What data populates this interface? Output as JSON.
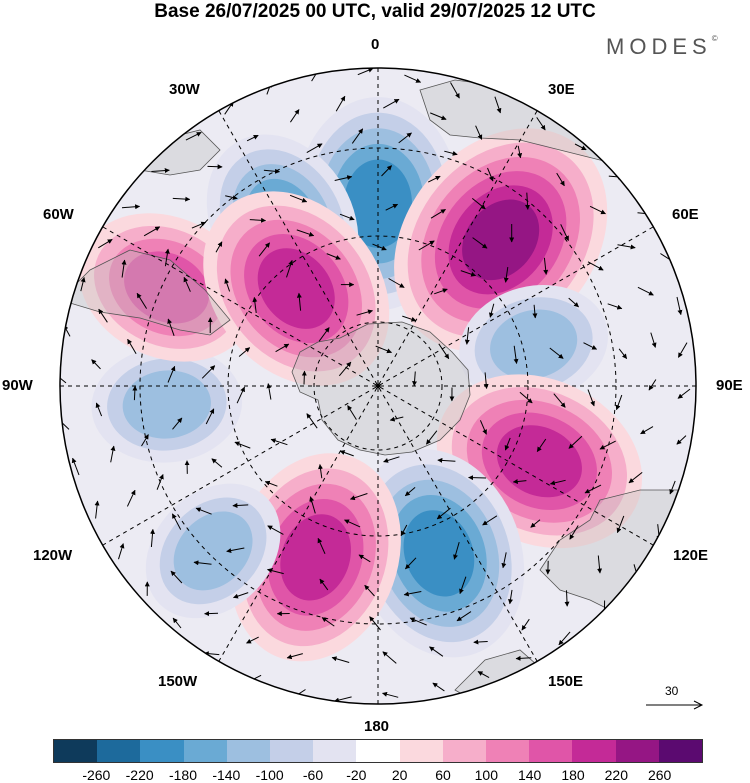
{
  "title": "Base 26/07/2025 00 UTC, valid 29/07/2025 12 UTC",
  "brand": "MODES",
  "brand_mark": "©",
  "longitude_labels": {
    "top": "0",
    "l30e": "30E",
    "l60e": "60E",
    "l90e": "90E",
    "l120e": "120E",
    "l150e": "150E",
    "bottom": "180",
    "l150w": "150W",
    "l120w": "120W",
    "l90w": "90W",
    "l60w": "60W",
    "l30w": "30W"
  },
  "colorbar": {
    "colors": [
      "#0e3a5b",
      "#1d6a9c",
      "#3a8fc4",
      "#6aaad4",
      "#9dbfe0",
      "#c4cfe8",
      "#e3e3f1",
      "#ffffff",
      "#fbd9de",
      "#f6aeca",
      "#ef81b6",
      "#e055a8",
      "#c42a97",
      "#951684",
      "#5b0a70"
    ],
    "ticks": [
      "-260",
      "-220",
      "-180",
      "-140",
      "-100",
      "-60",
      "-20",
      "20",
      "60",
      "100",
      "140",
      "180",
      "220",
      "260"
    ]
  },
  "wind_scale": {
    "value": "30"
  },
  "map_features": {
    "anomalies": [
      {
        "lon": 0,
        "lat": -47,
        "value": -190
      },
      {
        "lon": 40,
        "lat": -45,
        "value": 235
      },
      {
        "lon": 75,
        "lat": -52,
        "value": -130
      },
      {
        "lon": 115,
        "lat": -48,
        "value": 190
      },
      {
        "lon": 160,
        "lat": -48,
        "value": -200
      },
      {
        "lon": -160,
        "lat": -47,
        "value": 200
      },
      {
        "lon": -135,
        "lat": -35,
        "value": -110
      },
      {
        "lon": -95,
        "lat": -40,
        "value": -110
      },
      {
        "lon": -65,
        "lat": -35,
        "value": 150
      },
      {
        "lon": -30,
        "lat": -45,
        "value": -140
      },
      {
        "lon": -40,
        "lat": -60,
        "value": 190
      }
    ]
  }
}
